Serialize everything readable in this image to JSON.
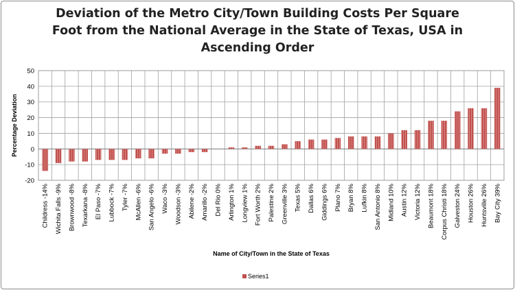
{
  "chart_data": {
    "type": "bar",
    "title": "Deviation of the Metro City/Town Building Costs Per Square Foot from the National Average in the State of Texas, USA in Ascending Order",
    "xlabel": "Name of City/Town in the State of Texas",
    "ylabel": "Percentage Deviation",
    "ylim": [
      -20,
      50
    ],
    "yticks": [
      50,
      40,
      30,
      20,
      10,
      0,
      -10,
      -20
    ],
    "grid": true,
    "legend_position": "bottom",
    "categories": [
      "Childress -14%",
      "Wichita Falls -9%",
      "Brownwood -8%",
      "Texarkana -8%",
      "El Paso -7%",
      "Lubbock -7%",
      "Tyler -7%",
      "McAllen -6%",
      "San Angelo -6%",
      "Waco -3%",
      "Woodson -3%",
      "Abilene -2%",
      "Amarillo -2%",
      "Del Rio 0%",
      "Arlington 1%",
      "Longview 1%",
      "Fort Worth 2%",
      "Palestine 2%",
      "Greenville 3%",
      "Texas 5%",
      "Dallas 6%",
      "Giddings 6%",
      "Plano 7%",
      "Bryan 8%",
      "Lufkin 8%",
      "San Antonio 8%",
      "Midland 10%",
      "Austin 12%",
      "Victoria 12%",
      "Beaumont 18%",
      "Corpus Christi 18%",
      "Galveston 24%",
      "Houston 26%",
      "Huntsville 26%",
      "Bay City 39%"
    ],
    "series": [
      {
        "name": "Series1",
        "color": "#c0504d",
        "values": [
          -14,
          -9,
          -8,
          -8,
          -7,
          -7,
          -7,
          -6,
          -6,
          -3,
          -3,
          -2,
          -2,
          0,
          1,
          1,
          2,
          2,
          3,
          5,
          6,
          6,
          7,
          8,
          8,
          8,
          10,
          12,
          12,
          18,
          18,
          24,
          26,
          26,
          39
        ]
      }
    ]
  }
}
